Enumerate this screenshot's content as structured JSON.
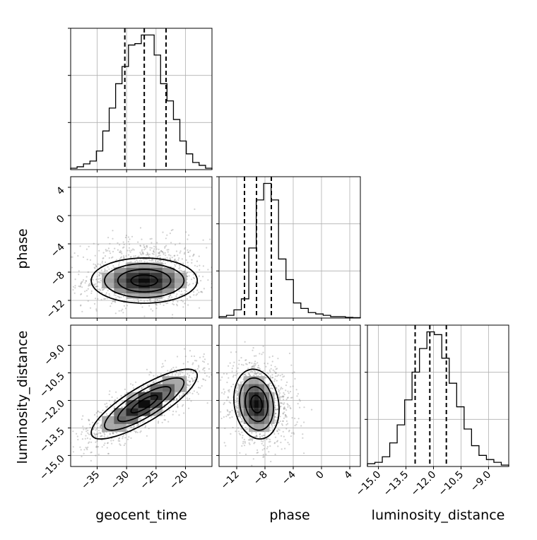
{
  "chart_data": {
    "type": "corner",
    "parameters": [
      "geocent_time",
      "phase",
      "luminosity_distance"
    ],
    "labels": {
      "geocent_time": "geocent_time",
      "phase": "phase",
      "luminosity_distance": "luminosity_distance"
    },
    "ticks": {
      "geocent_time": {
        "values": [
          -35,
          -30,
          -25,
          -20
        ],
        "labels": [
          "−35",
          "−30",
          "−25",
          "−20"
        ]
      },
      "phase": {
        "values": [
          -12,
          -8,
          -4,
          0,
          4
        ],
        "labels": [
          "−12",
          "−8",
          "−4",
          "0",
          "4"
        ]
      },
      "luminosity_distance": {
        "values": [
          -15.0,
          -13.5,
          -12.0,
          -10.5,
          -9.0
        ],
        "labels": [
          "−15.0",
          "−13.5",
          "−12.0",
          "−10.5",
          "−9.0"
        ]
      }
    },
    "ranges": {
      "geocent_time": [
        -39.5,
        -15.5
      ],
      "phase": [
        -14.5,
        5.5
      ],
      "luminosity_distance": [
        -15.6,
        -7.9
      ]
    },
    "histograms": {
      "geocent_time": {
        "bin_range": [
          -39.5,
          -15.5
        ],
        "counts": [
          1,
          2,
          4,
          6,
          13,
          27,
          43,
          60,
          72,
          87,
          88,
          94,
          94,
          80,
          60,
          48,
          35,
          20,
          11,
          5,
          3,
          1
        ]
      },
      "phase": {
        "bin_range": [
          -14.5,
          5.5
        ],
        "counts": [
          1,
          2,
          6,
          14,
          51,
          86,
          98,
          86,
          43,
          28,
          11,
          7,
          4,
          3,
          2,
          1,
          1,
          0.5,
          0.3
        ]
      },
      "luminosity_distance": {
        "bin_range": [
          -15.6,
          -7.9
        ],
        "counts": [
          2,
          3,
          7,
          17,
          30,
          48,
          68,
          85,
          97,
          95,
          78,
          60,
          43,
          27,
          15,
          8,
          5,
          3,
          1
        ]
      }
    },
    "quantiles": {
      "geocent_time": [
        -30.3,
        -27.0,
        -23.3
      ],
      "phase": [
        -10.9,
        -9.2,
        -7.1
      ],
      "luminosity_distance": [
        -13.0,
        -12.2,
        -11.3
      ]
    },
    "pairs": [
      {
        "x": "geocent_time",
        "y": "phase",
        "center": [
          -27.0,
          -9.2
        ],
        "sd": [
          4.5,
          1.6
        ],
        "rho": 0.0
      },
      {
        "x": "geocent_time",
        "y": "luminosity_distance",
        "center": [
          -27.0,
          -12.2
        ],
        "sd": [
          4.5,
          0.95
        ],
        "rho": 0.82
      },
      {
        "x": "phase",
        "y": "luminosity_distance",
        "center": [
          -9.2,
          -12.2
        ],
        "sd": [
          1.6,
          0.95
        ],
        "rho": -0.15
      }
    ],
    "contour_levels": [
      0.118,
      0.393,
      0.675,
      0.865
    ],
    "grid": true
  }
}
